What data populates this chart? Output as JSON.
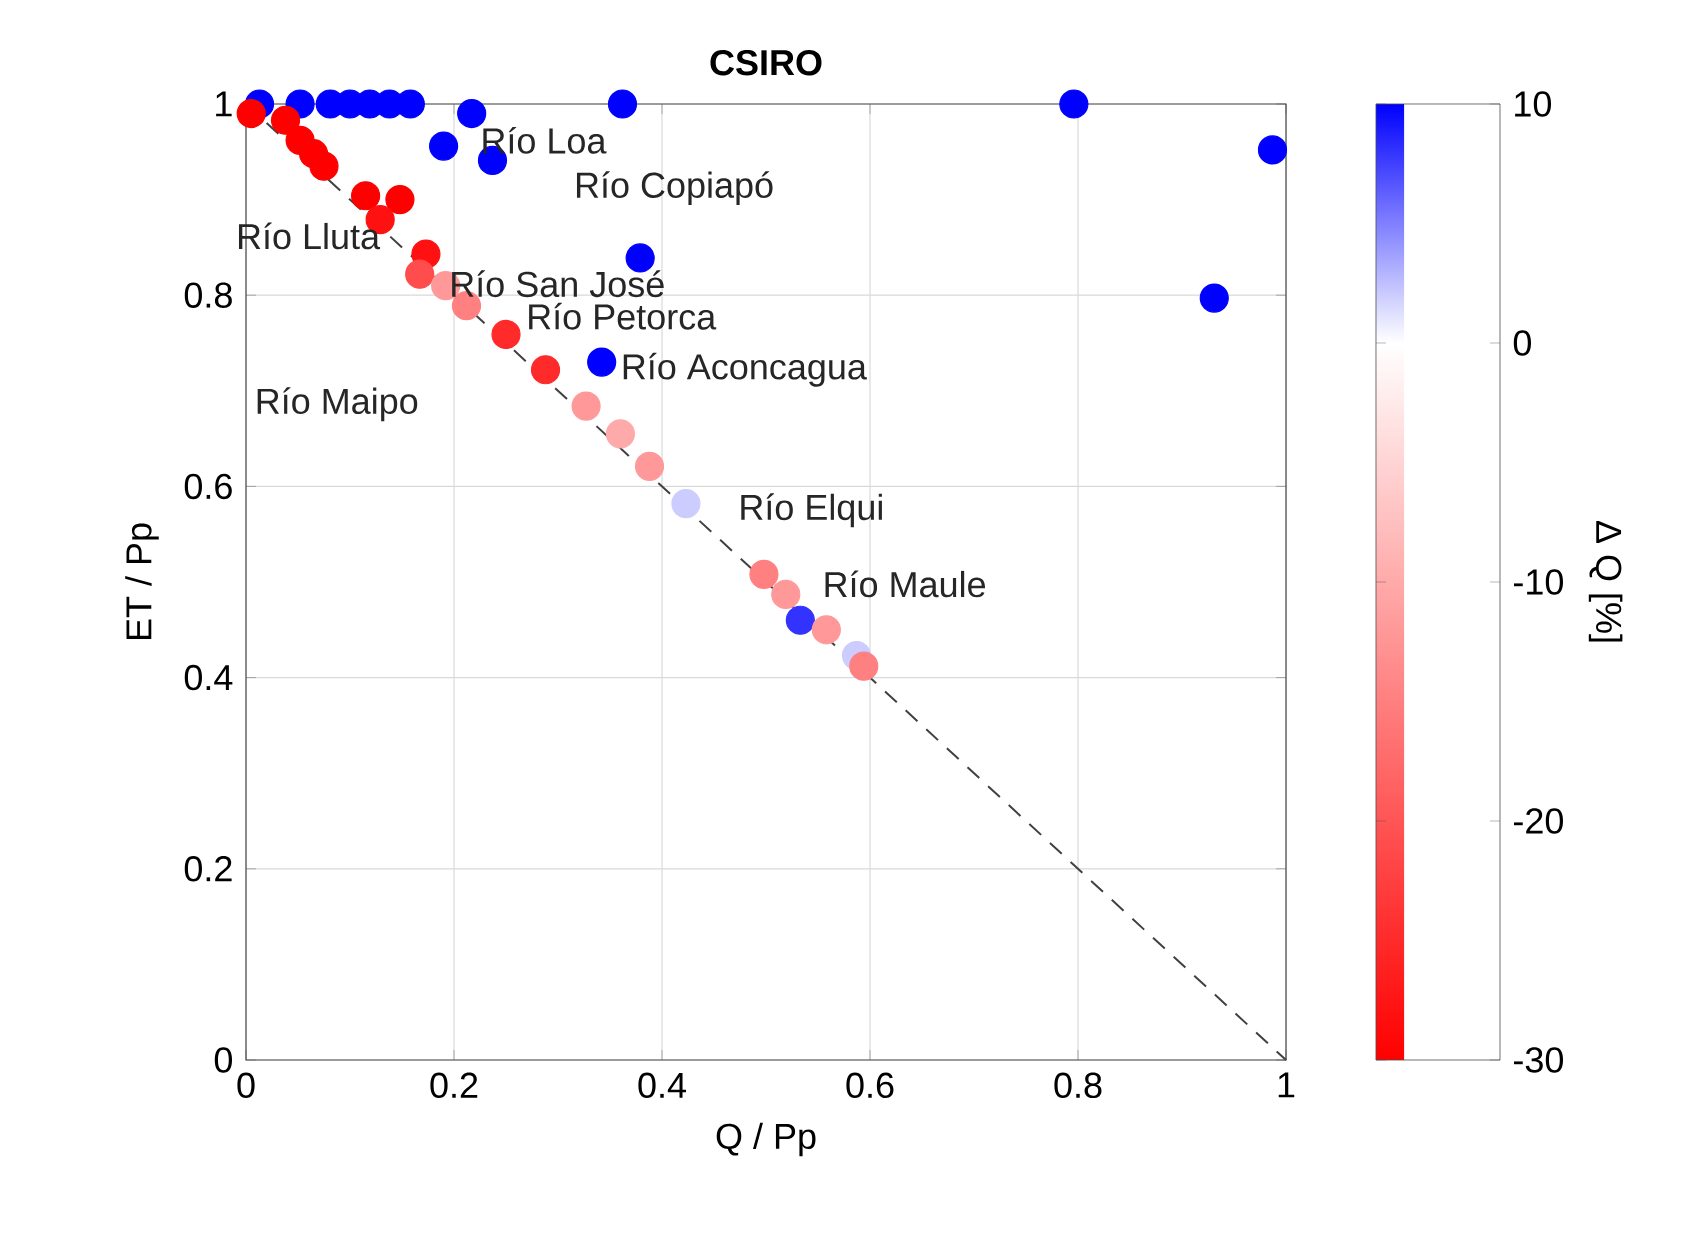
{
  "chart_data": {
    "type": "scatter",
    "title": "CSIRO",
    "xlabel": "Q / Pp",
    "ylabel": "ET / Pp",
    "clabel": "Δ Q [%]",
    "xlim": [
      0,
      1
    ],
    "ylim": [
      0,
      1
    ],
    "xticks": [
      0,
      0.2,
      0.4,
      0.6,
      0.8,
      1
    ],
    "yticks": [
      0,
      0.2,
      0.4,
      0.6,
      0.8,
      1
    ],
    "clim": [
      -30,
      10
    ],
    "cticks": [
      -30,
      -20,
      -10,
      0,
      10
    ],
    "grid": true,
    "series": [
      {
        "type": "line",
        "line_style": "dashed",
        "marker": "none",
        "color": "#404040",
        "x": [
          0,
          1
        ],
        "values": [
          1,
          0
        ]
      },
      {
        "marker": "circle",
        "x": [
          0.013,
          0.052,
          0.081,
          0.1,
          0.119,
          0.138,
          0.158,
          0.217,
          0.19,
          0.237,
          0.362,
          0.796,
          0.987,
          0.931,
          0.379,
          0.342,
          0.533,
          0.423,
          0.587,
          0.005,
          0.038,
          0.052,
          0.065,
          0.075,
          0.115,
          0.148,
          0.129,
          0.173,
          0.167,
          0.192,
          0.212,
          0.25,
          0.288,
          0.327,
          0.36,
          0.388,
          0.498,
          0.519,
          0.558,
          0.594
        ],
        "values": [
          1,
          1,
          1,
          1,
          1,
          1,
          1,
          0.99,
          0.956,
          0.941,
          1,
          1,
          0.952,
          0.797,
          0.839,
          0.73,
          0.46,
          0.582,
          0.423,
          0.99,
          0.983,
          0.962,
          0.948,
          0.935,
          0.904,
          0.9,
          0.879,
          0.843,
          0.822,
          0.81,
          0.789,
          0.759,
          0.722,
          0.684,
          0.655,
          0.621,
          0.508,
          0.487,
          0.45,
          0.412
        ],
        "colors": [
          "#0000ff",
          "#0000ff",
          "#0000ff",
          "#0000ff",
          "#0000ff",
          "#0000ff",
          "#0000ff",
          "#0000ff",
          "#0000ff",
          "#0000ff",
          "#0000ff",
          "#0000ff",
          "#0000ff",
          "#0000ff",
          "#0000ff",
          "#0000ff",
          "#3333ff",
          "#ccccff",
          "#ccccff",
          "#ff0000",
          "#ff0000",
          "#ff0000",
          "#ff0000",
          "#ff0000",
          "#ff0000",
          "#ff0000",
          "#ff1111",
          "#ff1111",
          "#ff4c4c",
          "#ff9999",
          "#ff8080",
          "#ff2a2a",
          "#ff2a2a",
          "#ff9999",
          "#ffaaaa",
          "#ff9999",
          "#ff8080",
          "#ff9999",
          "#ff9999",
          "#ff8080"
        ]
      }
    ],
    "annotations": [
      "Río Loa",
      "Río Copiapó",
      "Río Lluta",
      "Río San José",
      "Río Petorca",
      "Río Aconcagua",
      "Río Maipo",
      "Río Elqui",
      "Río Maule"
    ]
  }
}
